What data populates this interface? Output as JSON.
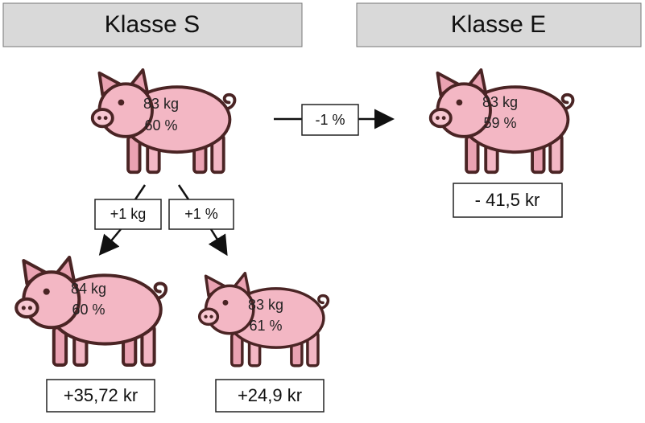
{
  "headers": [
    "Klasse S",
    "Klasse E"
  ],
  "pigs": [
    {
      "weight": "83 kg",
      "lean": "60 %"
    },
    {
      "weight": "83 kg",
      "lean": "59 %"
    },
    {
      "weight": "84 kg",
      "lean": "60 %"
    },
    {
      "weight": "83 kg",
      "lean": "61 %"
    }
  ],
  "arrows": [
    {
      "label": "-1 %"
    },
    {
      "label": "+1 kg"
    },
    {
      "label": "+1 %"
    }
  ],
  "results": [
    "- 41,5 kr",
    "+35,72 kr",
    "+24,9 kr"
  ]
}
